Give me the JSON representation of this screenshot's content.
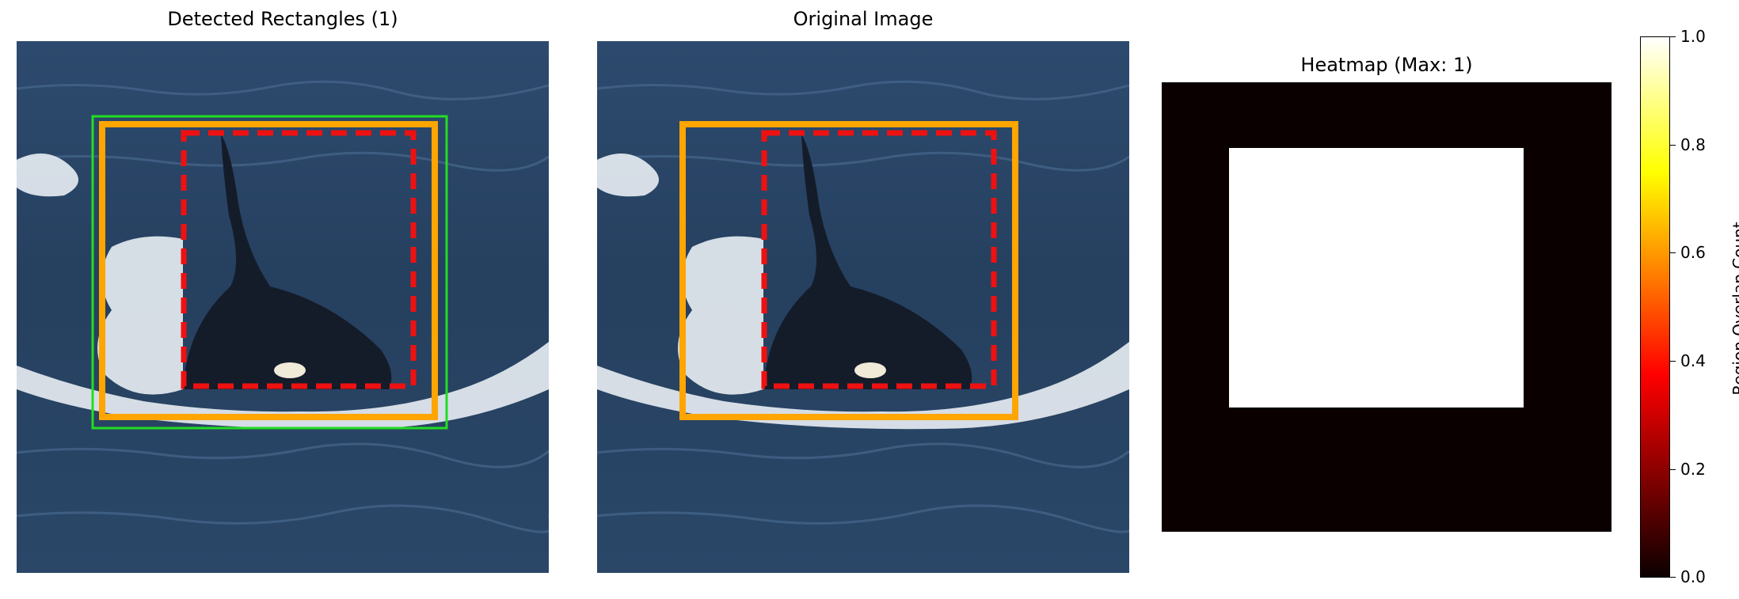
{
  "panels": [
    {
      "title": "Detected Rectangles (1)"
    },
    {
      "title": "Original Image"
    },
    {
      "title": "Heatmap (Max: 1)"
    }
  ],
  "colorbar": {
    "label": "Region Overlap Count",
    "ticks": [
      "0.0",
      "0.2",
      "0.4",
      "0.6",
      "0.8",
      "1.0"
    ]
  },
  "colors": {
    "box_orange": "#ffa500",
    "box_red_dashed": "#ee1111",
    "box_green": "#22dd22",
    "heatmap_low": "#0b0000",
    "heatmap_high": "#ffffff"
  }
}
